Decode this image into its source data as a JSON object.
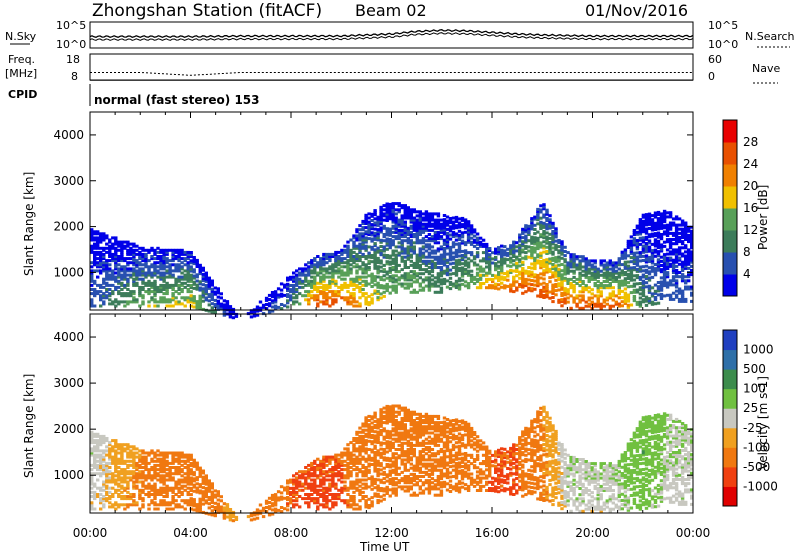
{
  "header": {
    "title": "Zhongshan Station (fitACF)",
    "beam": "Beam 02",
    "date": "01/Nov/2016"
  },
  "top_panel": {
    "left_label": "N.Sky",
    "ytick_top": "10^5",
    "ytick_bottom": "10^0",
    "right_tick_top": "10^5",
    "right_tick_bottom": "10^0",
    "right_label": "N.Search"
  },
  "freq_panel": {
    "left_label_1": "Freq.",
    "left_label_2": "[MHz]",
    "ytick_top": "18",
    "ytick_bottom": "8",
    "right_tick_top": "60",
    "right_tick_bottom": "0",
    "right_label": "Nave"
  },
  "cpid": {
    "label": "CPID",
    "mode_text": "normal (fast stereo) 153"
  },
  "power_panel": {
    "ylabel": "Slant Range [km]",
    "yticks": [
      "4000",
      "3000",
      "2000",
      "1000"
    ],
    "colorbar_label": "Power [dB]",
    "colorbar_ticks": [
      "28",
      "24",
      "20",
      "16",
      "12",
      "8",
      "4"
    ],
    "colors": [
      "#0000e8",
      "#2850b0",
      "#3c7c5a",
      "#58a058",
      "#f0c000",
      "#f08000",
      "#e85000",
      "#e80000"
    ]
  },
  "velocity_panel": {
    "ylabel": "Slant Range [km]",
    "yticks": [
      "4000",
      "3000",
      "2000",
      "1000"
    ],
    "colorbar_label": "Velocity [m s-1]",
    "colorbar_ticks": [
      "1000",
      "500",
      "100",
      "25",
      "-25",
      "-100",
      "-500",
      "-1000"
    ],
    "colors": [
      "#2040c0",
      "#2e6fa8",
      "#3c8c4c",
      "#70c040",
      "#c8c8c0",
      "#f0a020",
      "#f07810",
      "#f04010",
      "#e00000"
    ]
  },
  "xaxis": {
    "label": "Time UT",
    "ticks": [
      "00:00",
      "04:00",
      "08:00",
      "12:00",
      "16:00",
      "20:00",
      "00:00"
    ]
  },
  "chart_data": {
    "type": "heatmap",
    "x": [
      0,
      2,
      4,
      6,
      8,
      9,
      10,
      11,
      12,
      13,
      14,
      15,
      16,
      17,
      18,
      19,
      20,
      21,
      22,
      23,
      24
    ],
    "xunit": "hours UT",
    "ylim": [
      180,
      4500
    ],
    "xlim": [
      0,
      24
    ],
    "power_region_ranges_km": {
      "echo_lower_km": [
        300,
        300,
        300,
        0,
        300,
        300,
        300,
        300,
        600,
        600,
        600,
        700,
        700,
        600,
        500,
        250,
        250,
        250,
        300,
        400,
        400
      ],
      "echo_upper_km": [
        2000,
        1600,
        1500,
        0,
        1000,
        1400,
        1500,
        2300,
        2600,
        2400,
        2300,
        2200,
        1500,
        1800,
        2600,
        1500,
        1300,
        1300,
        2300,
        2400,
        2000
      ],
      "peak_power_dB": [
        8,
        16,
        20,
        0,
        12,
        28,
        28,
        20,
        16,
        16,
        12,
        16,
        24,
        28,
        28,
        28,
        28,
        28,
        12,
        8,
        8
      ]
    },
    "velocity_region_ranges_km": {
      "echo_lower_km": [
        300,
        300,
        300,
        0,
        300,
        300,
        300,
        300,
        600,
        600,
        600,
        700,
        700,
        600,
        500,
        250,
        250,
        250,
        300,
        400,
        400
      ],
      "echo_upper_km": [
        2000,
        1600,
        1500,
        0,
        1000,
        1400,
        1500,
        2300,
        2600,
        2400,
        2300,
        2200,
        1500,
        1800,
        2600,
        1500,
        1300,
        1300,
        2300,
        2400,
        2000
      ],
      "dominant_velocity_ms": [
        25,
        -100,
        -300,
        0,
        -500,
        -500,
        -500,
        -300,
        -200,
        -150,
        -200,
        -300,
        -500,
        -500,
        -100,
        25,
        25,
        25,
        100,
        25,
        25
      ]
    },
    "freq_MHz": [
      10.9,
      10.9,
      9.8,
      10.9,
      10.9,
      10.9,
      10.9,
      10.9,
      10.9,
      10.9,
      10.9,
      10.9,
      10.9,
      10.9,
      10.9,
      10.9,
      10.9,
      10.9,
      10.9,
      10.9,
      10.9
    ],
    "nave": [
      18,
      18,
      18,
      18,
      18,
      18,
      18,
      18,
      18,
      18,
      18,
      18,
      18,
      18,
      18,
      18,
      18,
      18,
      18,
      18,
      18
    ],
    "noise_log10": [
      2.2,
      2.2,
      2.2,
      2.3,
      2.3,
      2.3,
      2.3,
      2.5,
      2.7,
      3.2,
      3.4,
      3.3,
      3.0,
      2.7,
      2.5,
      2.4,
      2.3,
      2.3,
      2.3,
      2.3,
      2.3
    ],
    "xlabel": "Time UT",
    "ylabel": "Slant Range [km]"
  }
}
